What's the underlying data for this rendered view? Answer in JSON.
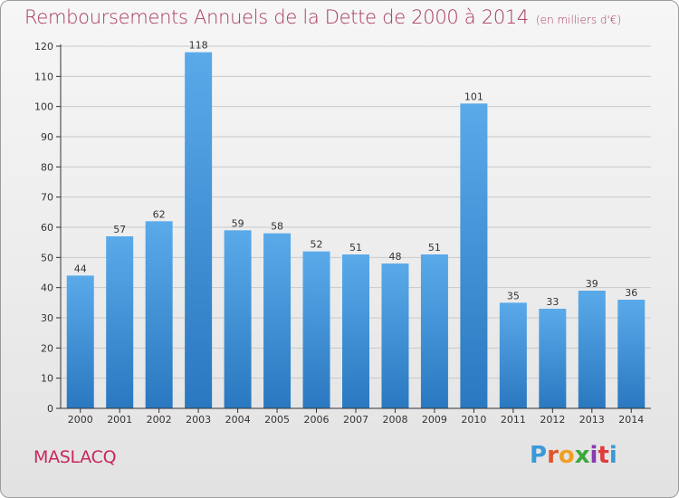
{
  "header": {
    "title": "Remboursements Annuels de la Dette de 2000 à 2014",
    "unit": "(en milliers d'€)"
  },
  "footer": {
    "commune": "MASLACQ",
    "logo_letters": [
      "P",
      "r",
      "o",
      "x",
      "i",
      "t",
      "i"
    ],
    "logo_colors": [
      "#3a9ad9",
      "#e0542a",
      "#f0a020",
      "#3aa83a",
      "#8a3ab0",
      "#e03a3a",
      "#3a9ad9"
    ]
  },
  "colors": {
    "bar_light": "#5aaaea",
    "bar_dark": "#2a78c0",
    "axis": "#333333",
    "grid": "#c9c9c9"
  },
  "chart_data": {
    "type": "bar",
    "categories": [
      "2000",
      "2001",
      "2002",
      "2003",
      "2004",
      "2005",
      "2006",
      "2007",
      "2008",
      "2009",
      "2010",
      "2011",
      "2012",
      "2013",
      "2014"
    ],
    "values": [
      44,
      57,
      62,
      118,
      59,
      58,
      52,
      51,
      48,
      51,
      101,
      35,
      33,
      39,
      36
    ],
    "ylim": [
      0,
      120
    ],
    "yticks": [
      0,
      10,
      20,
      30,
      40,
      50,
      60,
      70,
      80,
      90,
      100,
      110,
      120
    ],
    "grid": true,
    "legend": "none"
  }
}
